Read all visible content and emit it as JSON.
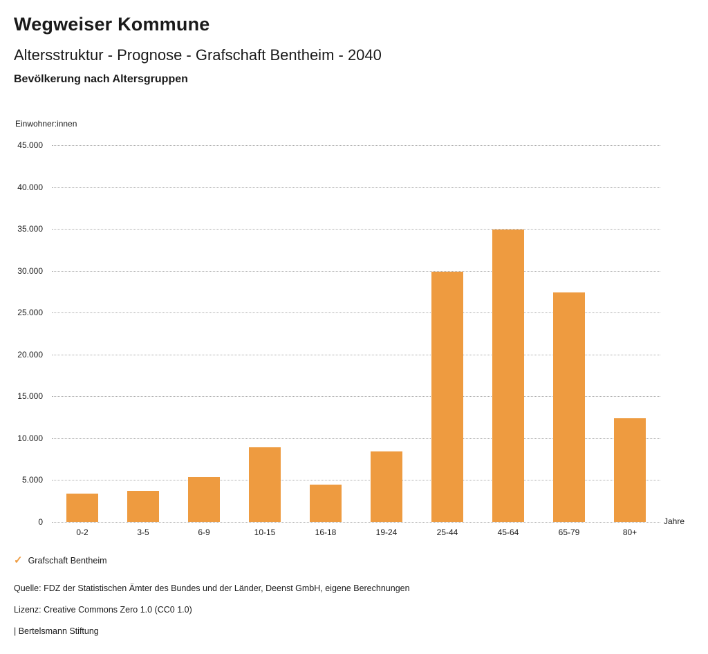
{
  "header": {
    "title": "Wegweiser Kommune",
    "subtitle": "Altersstruktur - Prognose - Grafschaft Bentheim - 2040",
    "chart_heading": "Bevölkerung nach Altersgruppen"
  },
  "chart_data": {
    "type": "bar",
    "title": "Bevölkerung nach Altersgruppen",
    "ylabel": "Einwohner:innen",
    "xlabel": "Jahre",
    "categories": [
      "0-2",
      "3-5",
      "6-9",
      "10-15",
      "16-18",
      "19-24",
      "25-44",
      "45-64",
      "65-79",
      "80+"
    ],
    "values": [
      3400,
      3700,
      5400,
      8900,
      4500,
      8400,
      29900,
      34900,
      27400,
      12400
    ],
    "ylim": [
      0,
      45000
    ],
    "ytick_step": 5000,
    "ytick_labels": [
      "0",
      "5.000",
      "10.000",
      "15.000",
      "20.000",
      "25.000",
      "30.000",
      "35.000",
      "40.000",
      "45.000"
    ],
    "grid": "horizontal-dotted",
    "legend_position": "bottom-left",
    "bar_color": "#ee9b40",
    "legend": [
      {
        "label": "Grafschaft Bentheim",
        "marker": "check",
        "marker_glyph": "✓",
        "color": "#ee9b40"
      }
    ]
  },
  "footer": {
    "source": "Quelle: FDZ der Statistischen Ämter des Bundes und der Länder, Deenst GmbH, eigene Berechnungen",
    "license": "Lizenz: Creative Commons Zero 1.0 (CC0 1.0)",
    "brand": "| Bertelsmann Stiftung"
  }
}
